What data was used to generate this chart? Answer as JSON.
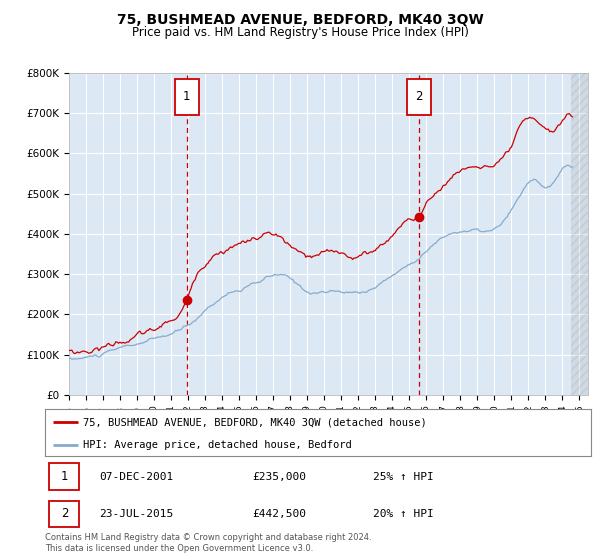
{
  "title": "75, BUSHMEAD AVENUE, BEDFORD, MK40 3QW",
  "subtitle": "Price paid vs. HM Land Registry's House Price Index (HPI)",
  "title_fontsize": 10,
  "subtitle_fontsize": 8.5,
  "background_color": "#ffffff",
  "plot_bg_color": "#dce9f5",
  "grid_color": "#ffffff",
  "red_line_color": "#cc0000",
  "blue_line_color": "#88aacc",
  "ylim": [
    0,
    800000
  ],
  "yticks": [
    0,
    100000,
    200000,
    300000,
    400000,
    500000,
    600000,
    700000,
    800000
  ],
  "ytick_labels": [
    "£0",
    "£100K",
    "£200K",
    "£300K",
    "£400K",
    "£500K",
    "£600K",
    "£700K",
    "£800K"
  ],
  "xlim_start": 1995.0,
  "xlim_end": 2025.5,
  "sale1_x": 2001.92,
  "sale1_y": 235000,
  "sale2_x": 2015.55,
  "sale2_y": 442500,
  "sale1_date": "07-DEC-2001",
  "sale1_price": "£235,000",
  "sale1_hpi": "25% ↑ HPI",
  "sale2_date": "23-JUL-2015",
  "sale2_price": "£442,500",
  "sale2_hpi": "20% ↑ HPI",
  "legend_line1": "75, BUSHMEAD AVENUE, BEDFORD, MK40 3QW (detached house)",
  "legend_line2": "HPI: Average price, detached house, Bedford",
  "footer": "Contains HM Land Registry data © Crown copyright and database right 2024.\nThis data is licensed under the Open Government Licence v3.0."
}
